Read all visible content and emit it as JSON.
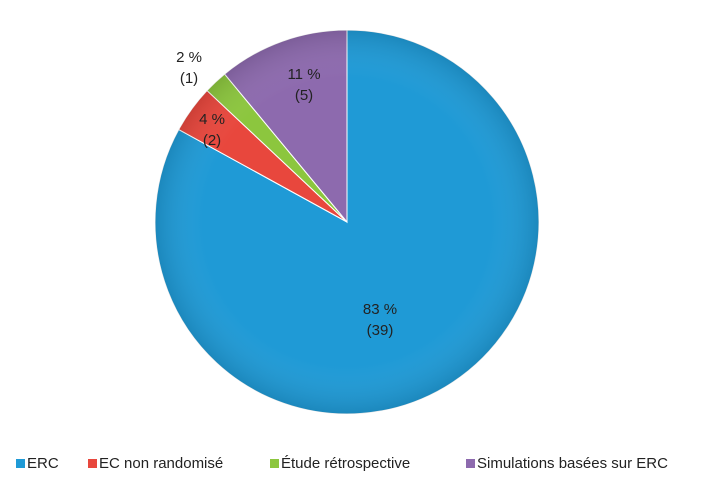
{
  "chart_data": {
    "type": "pie",
    "categories": [
      "ERC",
      "EC non randomisé",
      "Étude rétrospective",
      "Simulations basées sur ERC"
    ],
    "values": [
      83,
      4,
      2,
      11
    ],
    "value_labels": [
      "83 %",
      "4 %",
      "2 %",
      "11 %"
    ],
    "counts": [
      39,
      2,
      1,
      5
    ],
    "count_labels": [
      "(39)",
      "(2)",
      "(1)",
      "(5)"
    ],
    "colors": [
      "#1f9ad6",
      "#e8473d",
      "#8cc63e",
      "#8d6aae"
    ]
  }
}
